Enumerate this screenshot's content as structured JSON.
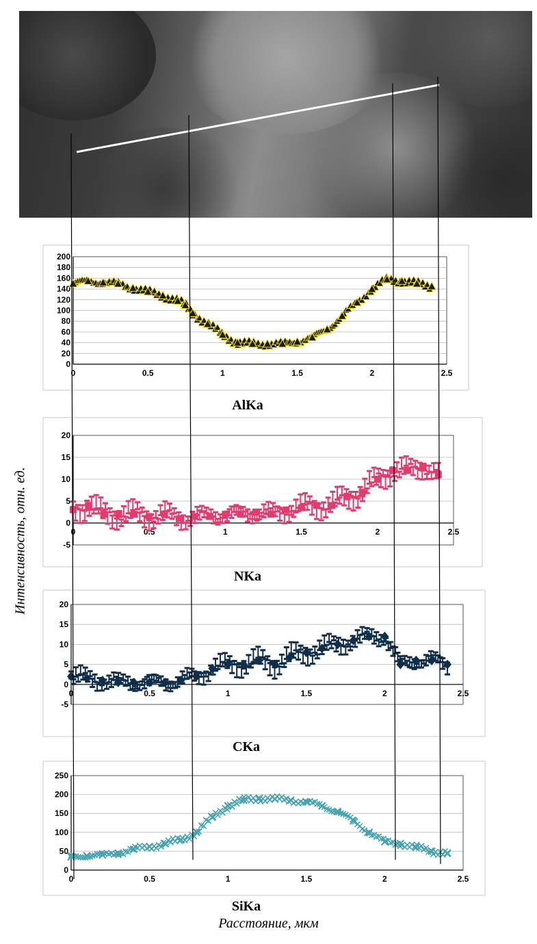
{
  "axis_labels": {
    "y": "Интенсивность, отн. ед.",
    "x": "Расстояние, мкм"
  },
  "chart_data": [
    {
      "type": "scatter",
      "title": "AlKa",
      "color": "#1a1a1a",
      "marker_color": "#1a1a1a",
      "edge_color": "#f2e21a",
      "marker": "triangle",
      "xlim": [
        0,
        2.5
      ],
      "ylim": [
        0,
        200
      ],
      "xticks": [
        "0",
        "0.5",
        "1",
        "1.5",
        "2",
        "2.5"
      ],
      "yticks": [
        "0",
        "20",
        "40",
        "60",
        "80",
        "100",
        "120",
        "140",
        "160",
        "180",
        "200"
      ],
      "grid": true,
      "x": [
        0,
        0.1,
        0.2,
        0.3,
        0.4,
        0.5,
        0.6,
        0.7,
        0.75,
        0.8,
        0.9,
        1.0,
        1.1,
        1.2,
        1.3,
        1.4,
        1.5,
        1.6,
        1.7,
        1.8,
        1.9,
        2.0,
        2.1,
        2.2,
        2.3,
        2.4
      ],
      "y": [
        150,
        155,
        152,
        150,
        142,
        135,
        128,
        118,
        110,
        95,
        75,
        55,
        40,
        38,
        38,
        38,
        42,
        50,
        65,
        90,
        115,
        140,
        158,
        155,
        150,
        145
      ]
    },
    {
      "type": "scatter",
      "title": "NKa",
      "color": "#e23b6e",
      "marker_color": "#e23b6e",
      "edge_color": "#e23b6e",
      "marker": "errorbar",
      "xlim": [
        0,
        2.5
      ],
      "ylim": [
        -5,
        20
      ],
      "xticks": [
        "0",
        "0.5",
        "1",
        "1.5",
        "2",
        "2.5"
      ],
      "yticks": [
        "-5",
        "0",
        "5",
        "10",
        "15",
        "20"
      ],
      "grid": true,
      "x": [
        0,
        0.1,
        0.2,
        0.3,
        0.4,
        0.5,
        0.6,
        0.7,
        0.8,
        0.9,
        1.0,
        1.1,
        1.2,
        1.3,
        1.4,
        1.5,
        1.6,
        1.7,
        1.8,
        1.9,
        2.0,
        2.1,
        2.2,
        2.3,
        2.4
      ],
      "y": [
        3,
        4,
        2,
        2,
        2,
        1.5,
        2,
        1,
        1.5,
        1.5,
        2,
        2,
        2.5,
        2,
        3,
        3.5,
        4,
        4,
        6,
        7,
        10,
        12,
        12,
        13,
        11
      ]
    },
    {
      "type": "scatter",
      "title": "CKa",
      "color": "#0f2e4a",
      "marker_color": "#0f2e4a",
      "edge_color": "#0f2e4a",
      "marker": "diamond",
      "xlim": [
        0,
        2.5
      ],
      "ylim": [
        -5,
        20
      ],
      "xticks": [
        "0",
        "0.5",
        "1",
        "1.5",
        "2",
        "2.5"
      ],
      "yticks": [
        "-5",
        "0",
        "5",
        "10",
        "15",
        "20"
      ],
      "grid": true,
      "x": [
        0,
        0.1,
        0.2,
        0.3,
        0.4,
        0.5,
        0.6,
        0.7,
        0.8,
        0.9,
        1.0,
        1.1,
        1.2,
        1.3,
        1.4,
        1.5,
        1.6,
        1.7,
        1.8,
        1.9,
        2.0,
        2.1,
        2.2,
        2.3,
        2.4
      ],
      "y": [
        2,
        1.5,
        1,
        0.5,
        0.5,
        0.5,
        0.5,
        1,
        2,
        4,
        5,
        5,
        6,
        5,
        7,
        8,
        9,
        10,
        11,
        12,
        12,
        5,
        6,
        6,
        5
      ]
    },
    {
      "type": "scatter",
      "title": "SiKa",
      "color": "#45a3ae",
      "marker_color": "#45a3ae",
      "edge_color": "#45a3ae",
      "marker": "cross",
      "xlim": [
        0,
        2.5
      ],
      "ylim": [
        0,
        250
      ],
      "xticks": [
        "0",
        "0.5",
        "1",
        "1.5",
        "2",
        "2.5"
      ],
      "yticks": [
        "0",
        "50",
        "100",
        "150",
        "200",
        "250"
      ],
      "grid": true,
      "x": [
        0,
        0.1,
        0.2,
        0.3,
        0.4,
        0.5,
        0.6,
        0.7,
        0.8,
        0.9,
        1.0,
        1.1,
        1.2,
        1.3,
        1.4,
        1.5,
        1.6,
        1.7,
        1.8,
        1.9,
        2.0,
        2.1,
        2.2,
        2.3,
        2.4
      ],
      "y": [
        35,
        38,
        40,
        45,
        55,
        62,
        70,
        80,
        100,
        140,
        170,
        185,
        190,
        188,
        185,
        180,
        170,
        155,
        130,
        100,
        75,
        70,
        60,
        50,
        45
      ]
    }
  ]
}
